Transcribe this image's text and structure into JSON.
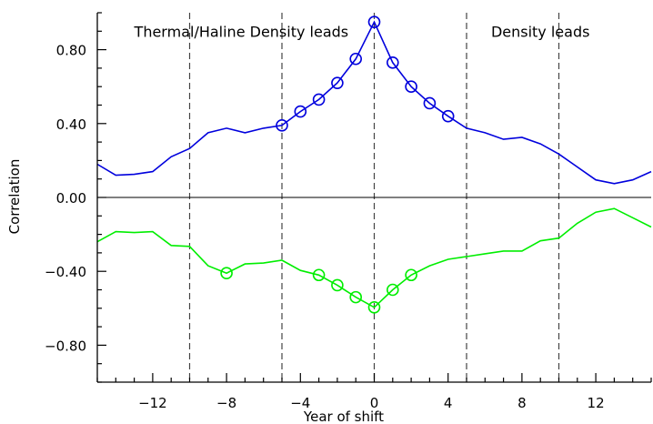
{
  "chart_data": {
    "type": "line",
    "xlabel": "Year of shift",
    "ylabel": "Correlation",
    "xlim": [
      -15,
      15
    ],
    "ylim": [
      -1.0,
      1.0
    ],
    "x_ticks": [
      -12,
      -8,
      -4,
      0,
      4,
      8,
      12
    ],
    "x_tick_labels": [
      "−12",
      "−8",
      "−4",
      "0",
      "4",
      "8",
      "12"
    ],
    "y_ticks": [
      0.8,
      0.4,
      0.0,
      -0.4,
      -0.8
    ],
    "y_tick_labels": [
      "0.80",
      "0.40",
      "0.00",
      "−0.40",
      "−0.80"
    ],
    "zero_line": true,
    "vertical_dashed_lines_x": [
      -10,
      -5,
      0,
      5,
      10
    ],
    "annotations": [
      {
        "text": "Thermal/Haline Density leads",
        "x": -7.2,
        "y": 0.9
      },
      {
        "text": "Density leads",
        "x": 9.0,
        "y": 0.9
      }
    ],
    "series": [
      {
        "color": "#0000dd",
        "x": [
          -15,
          -14,
          -13,
          -12,
          -11,
          -10,
          -9,
          -8,
          -7,
          -6,
          -5,
          -4,
          -3,
          -2,
          -1,
          0,
          1,
          2,
          3,
          4,
          5,
          6,
          7,
          8,
          9,
          10,
          11,
          12,
          13,
          14,
          15
        ],
        "y": [
          0.18,
          0.12,
          0.125,
          0.14,
          0.22,
          0.265,
          0.35,
          0.375,
          0.35,
          0.375,
          0.39,
          0.465,
          0.53,
          0.62,
          0.75,
          0.95,
          0.73,
          0.6,
          0.51,
          0.44,
          0.375,
          0.35,
          0.315,
          0.325,
          0.29,
          0.235,
          0.165,
          0.095,
          0.075,
          0.095,
          0.14
        ],
        "markers_x": [
          -5,
          -4,
          -3,
          -2,
          -1,
          0,
          1,
          2,
          3,
          4
        ]
      },
      {
        "color": "#00ee00",
        "x": [
          -15,
          -14,
          -13,
          -12,
          -11,
          -10,
          -9,
          -8,
          -7,
          -6,
          -5,
          -4,
          -3,
          -2,
          -1,
          0,
          1,
          2,
          3,
          4,
          5,
          6,
          7,
          8,
          9,
          10,
          11,
          12,
          13,
          14,
          15
        ],
        "y": [
          -0.24,
          -0.185,
          -0.19,
          -0.185,
          -0.26,
          -0.265,
          -0.37,
          -0.41,
          -0.36,
          -0.355,
          -0.34,
          -0.395,
          -0.42,
          -0.475,
          -0.54,
          -0.595,
          -0.5,
          -0.42,
          -0.37,
          -0.335,
          -0.32,
          -0.305,
          -0.29,
          -0.29,
          -0.235,
          -0.22,
          -0.14,
          -0.08,
          -0.06,
          -0.11,
          -0.16
        ],
        "markers_x": [
          -8,
          -3,
          -2,
          -1,
          0,
          1,
          2
        ]
      }
    ]
  }
}
